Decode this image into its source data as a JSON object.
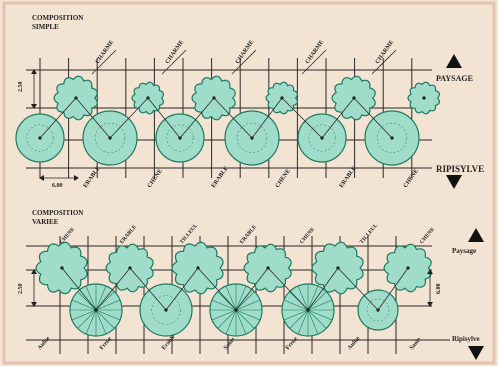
{
  "colors": {
    "page": "#f3e3d3",
    "frame": "#e2c3ad",
    "grid": "#2a2a2a",
    "tree_fill": "#9fdcc9",
    "tree_stroke": "#1e7a5f"
  },
  "top": {
    "title_line1": "COMPOSITION",
    "title_line2": "SIMPLE",
    "label_right_top": "PAYSAGE",
    "label_right_bottom": "RIPISYLVE",
    "dim_left": "2.50",
    "dim_bottom": "6.00",
    "upper_species": [
      "CHARME",
      "CHARME",
      "CHARME",
      "CHARME",
      "CHARME"
    ],
    "lower_species": [
      "ERABLE",
      "CHENE",
      "ERABLE",
      "CHENE",
      "ERABLE",
      "CHENE"
    ]
  },
  "bottom": {
    "title_line1": "COMPOSITION",
    "title_line2": "VARIEE",
    "label_right_top": "Paysage",
    "label_right_bottom": "Ripisylve",
    "dim_left": "2.50",
    "dim_right": "6.00",
    "upper_species": [
      "CHENE",
      "ERABLE",
      "TILLEUL",
      "ERABLE",
      "CHENE",
      "TILLEUL",
      "CHENE"
    ],
    "lower_species": [
      "Aulne",
      "Frene",
      "Erable",
      "Saule",
      "Frene",
      "Aulne",
      "Saule"
    ]
  }
}
